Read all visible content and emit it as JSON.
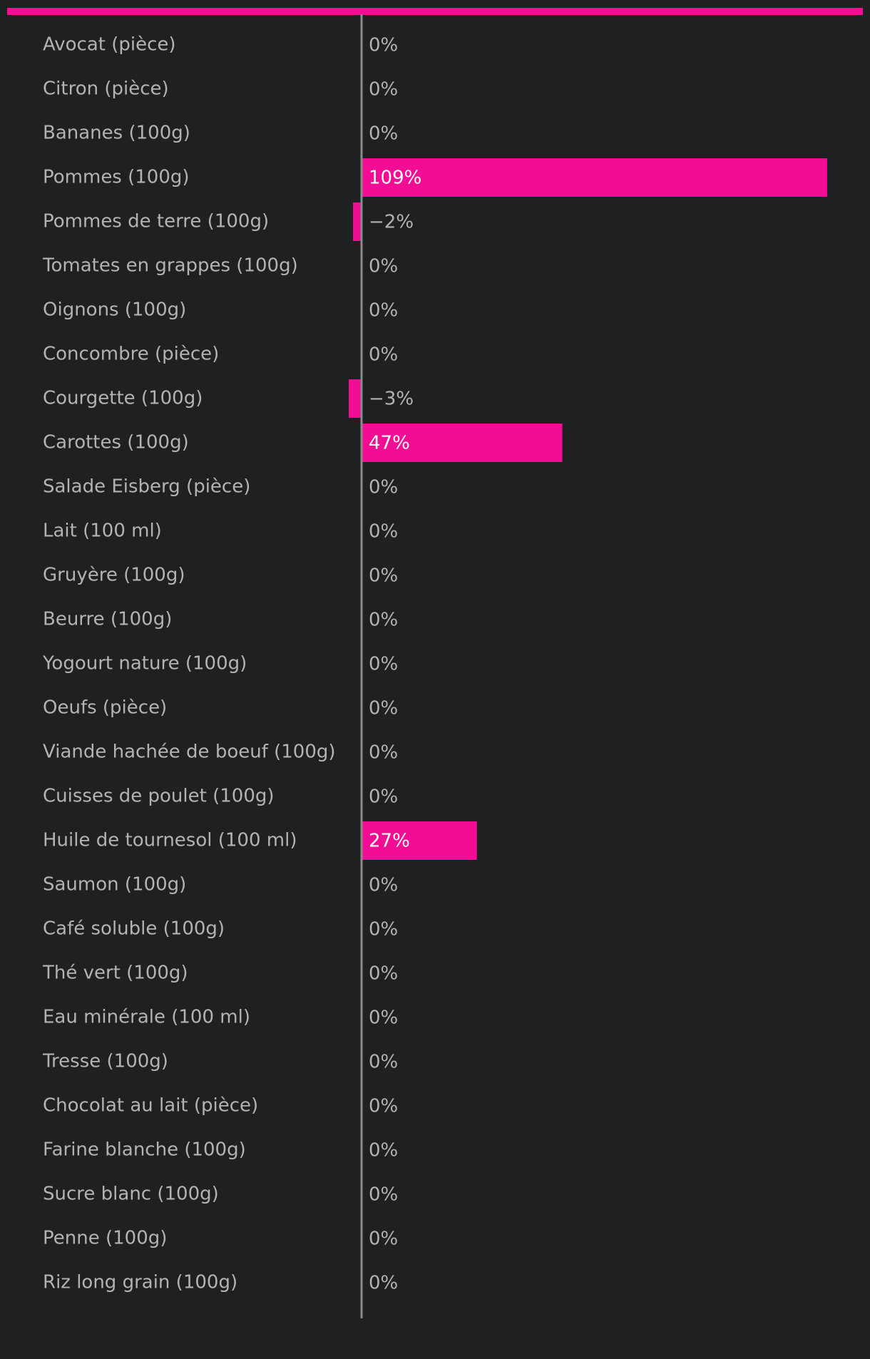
{
  "chart_data": {
    "type": "bar",
    "orientation": "horizontal",
    "categories": [
      "Avocat (pièce)",
      "Citron (pièce)",
      "Bananes (100g)",
      "Pommes (100g)",
      "Pommes de terre (100g)",
      "Tomates en grappes (100g)",
      "Oignons (100g)",
      "Concombre (pièce)",
      "Courgette (100g)",
      "Carottes (100g)",
      "Salade Eisberg (pièce)",
      "Lait (100 ml)",
      "Gruyère (100g)",
      "Beurre (100g)",
      "Yogourt nature (100g)",
      "Oeufs (pièce)",
      "Viande hachée de boeuf (100g)",
      "Cuisses de poulet (100g)",
      "Huile de tournesol (100 ml)",
      "Saumon (100g)",
      "Café soluble (100g)",
      "Thé vert (100g)",
      "Eau minérale (100 ml)",
      "Tresse (100g)",
      "Chocolat au lait (pièce)",
      "Farine blanche (100g)",
      "Sucre blanc (100g)",
      "Penne (100g)",
      "Riz long grain (100g)"
    ],
    "values": [
      0,
      0,
      0,
      109,
      -2,
      0,
      0,
      0,
      -3,
      47,
      0,
      0,
      0,
      0,
      0,
      0,
      0,
      0,
      27,
      0,
      0,
      0,
      0,
      0,
      0,
      0,
      0,
      0,
      0
    ],
    "value_labels": [
      "0%",
      "0%",
      "0%",
      "109%",
      "−2%",
      "0%",
      "0%",
      "0%",
      "−3%",
      "47%",
      "0%",
      "0%",
      "0%",
      "0%",
      "0%",
      "0%",
      "0%",
      "0%",
      "27%",
      "0%",
      "0%",
      "0%",
      "0%",
      "0%",
      "0%",
      "0%",
      "0%",
      "0%",
      "0%"
    ],
    "unit": "%",
    "colors": {
      "bar": "#f20d94",
      "accent_bar": "#f20d94",
      "axis": "#8a8a8c",
      "background": "#1f2022",
      "text": "#b3b3b6",
      "text_inside_bar": "#ffffff"
    },
    "grid": false,
    "legend": "none"
  }
}
